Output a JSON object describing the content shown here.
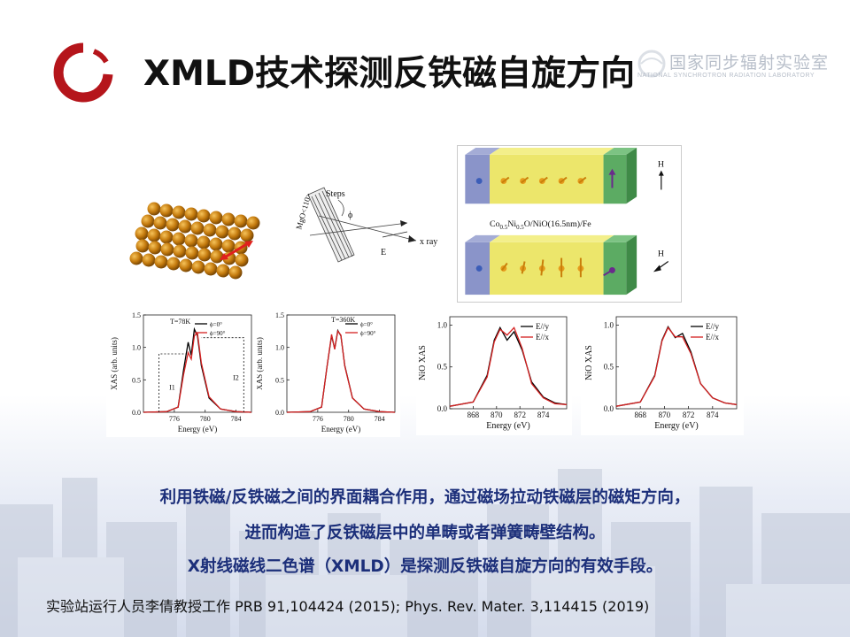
{
  "slide": {
    "title": "XMLD技术探测反铁磁自旋方向",
    "lab_name_cn": "国家同步辐射实验室",
    "lab_name_en": "NATIONAL SYNCHROTRON RADIATION LABORATORY",
    "body_lines": [
      "利用铁磁/反铁磁之间的界面耦合作用，通过磁场拉动铁磁层的磁矩方向，",
      "进而构造了反铁磁层中的单畴或者弹簧畴壁结构。",
      "X射线磁线二色谱（XMLD）是探测反铁磁自旋方向的有效手段。"
    ],
    "reference": "实验站运行人员李倩教授工作  PRB 91,104424  (2015);  Phys. Rev. Mater. 3,114415  (2019)",
    "colors": {
      "title": "#111111",
      "body": "#1c2f7a",
      "logo_red": "#b5151b",
      "curve_red": "#d42020"
    }
  },
  "geometry_fig": {
    "labels": {
      "steps": "Steps",
      "mgo": "MgO<110>",
      "phi": "ϕ",
      "xray": "x ray",
      "efield": "E"
    }
  },
  "layer_fig": {
    "caption_parts": [
      "Co",
      "0.5",
      "Ni",
      "0.5",
      "O/NiO(16.5nm)/Fe"
    ],
    "field_label_top": "H",
    "field_label_bottom": "H"
  },
  "chart_data": [
    {
      "type": "line",
      "title": "T=78K",
      "xlabel": "Energy (eV)",
      "ylabel": "XAS (arb. units)",
      "xlim": [
        772,
        786
      ],
      "ylim": [
        0.0,
        1.5
      ],
      "x_ticks": [
        "776",
        "780",
        "784"
      ],
      "y_ticks": [
        "0.0",
        "0.5",
        "1.0",
        "1.5"
      ],
      "annotations": [
        "I1",
        "I2"
      ],
      "series": [
        {
          "name": "ϕ=0°",
          "color": "#000000",
          "x": [
            772,
            775,
            776.5,
            777.2,
            777.8,
            778.2,
            778.6,
            779.0,
            779.5,
            780.5,
            782,
            784,
            786
          ],
          "y": [
            0.0,
            0.01,
            0.08,
            0.65,
            1.08,
            0.88,
            1.28,
            1.18,
            0.72,
            0.22,
            0.05,
            0.01,
            0.0
          ]
        },
        {
          "name": "ϕ=90°",
          "color": "#d42020",
          "x": [
            772,
            775,
            776.5,
            777.2,
            777.8,
            778.2,
            778.6,
            779.0,
            779.5,
            780.5,
            782,
            784,
            786
          ],
          "y": [
            0.0,
            0.01,
            0.08,
            0.58,
            0.92,
            0.82,
            1.18,
            1.22,
            0.76,
            0.24,
            0.05,
            0.01,
            0.0
          ]
        }
      ]
    },
    {
      "type": "line",
      "title": "T=360K",
      "xlabel": "Energy (eV)",
      "ylabel": "XAS (arb. units)",
      "xlim": [
        772,
        786
      ],
      "ylim": [
        0.0,
        1.5
      ],
      "x_ticks": [
        "776",
        "780",
        "784"
      ],
      "y_ticks": [
        "0.0",
        "0.5",
        "1.0",
        "1.5"
      ],
      "series": [
        {
          "name": "ϕ=0°",
          "color": "#000000",
          "x": [
            772,
            775,
            776.5,
            777.2,
            777.8,
            778.2,
            778.6,
            779.0,
            779.5,
            780.5,
            782,
            784,
            786
          ],
          "y": [
            0.0,
            0.01,
            0.08,
            0.7,
            1.18,
            0.98,
            1.26,
            1.18,
            0.72,
            0.22,
            0.05,
            0.01,
            0.0
          ]
        },
        {
          "name": "ϕ=90°",
          "color": "#d42020",
          "x": [
            772,
            775,
            776.5,
            777.2,
            777.8,
            778.2,
            778.6,
            779.0,
            779.5,
            780.5,
            782,
            784,
            786
          ],
          "y": [
            0.0,
            0.01,
            0.08,
            0.7,
            1.2,
            0.97,
            1.25,
            1.19,
            0.71,
            0.22,
            0.05,
            0.01,
            0.0
          ]
        }
      ]
    },
    {
      "type": "line",
      "xlabel": "Energy (eV)",
      "ylabel": "NiO XAS",
      "xlim": [
        866,
        876
      ],
      "ylim": [
        0.0,
        1.1
      ],
      "x_ticks": [
        "868",
        "870",
        "872",
        "874"
      ],
      "y_ticks": [
        "0.0",
        "0.5",
        "1.0"
      ],
      "series": [
        {
          "name": "E//y",
          "color": "#000000",
          "x": [
            866,
            868,
            869.2,
            869.8,
            870.3,
            870.9,
            871.5,
            872.2,
            873,
            874,
            875,
            876
          ],
          "y": [
            0.03,
            0.08,
            0.4,
            0.82,
            0.97,
            0.82,
            0.92,
            0.7,
            0.32,
            0.14,
            0.07,
            0.05
          ]
        },
        {
          "name": "E//x",
          "color": "#d42020",
          "x": [
            866,
            868,
            869.2,
            869.8,
            870.3,
            870.9,
            871.5,
            872.2,
            873,
            874,
            875,
            876
          ],
          "y": [
            0.03,
            0.08,
            0.38,
            0.8,
            0.95,
            0.88,
            0.97,
            0.72,
            0.3,
            0.13,
            0.06,
            0.05
          ]
        }
      ]
    },
    {
      "type": "line",
      "xlabel": "Energy (eV)",
      "ylabel": "NiO XAS",
      "xlim": [
        866,
        876
      ],
      "ylim": [
        0.0,
        1.1
      ],
      "x_ticks": [
        "868",
        "870",
        "872",
        "874"
      ],
      "y_ticks": [
        "0.0",
        "0.5",
        "1.0"
      ],
      "series": [
        {
          "name": "E//y",
          "color": "#000000",
          "x": [
            866,
            868,
            869.2,
            869.8,
            870.3,
            870.9,
            871.5,
            872.2,
            873,
            874,
            875,
            876
          ],
          "y": [
            0.03,
            0.08,
            0.4,
            0.82,
            0.98,
            0.85,
            0.9,
            0.68,
            0.3,
            0.13,
            0.07,
            0.05
          ]
        },
        {
          "name": "E//x",
          "color": "#d42020",
          "x": [
            866,
            868,
            869.2,
            869.8,
            870.3,
            870.9,
            871.5,
            872.2,
            873,
            874,
            875,
            876
          ],
          "y": [
            0.03,
            0.08,
            0.39,
            0.81,
            0.97,
            0.86,
            0.86,
            0.66,
            0.3,
            0.13,
            0.07,
            0.05
          ]
        }
      ]
    }
  ]
}
